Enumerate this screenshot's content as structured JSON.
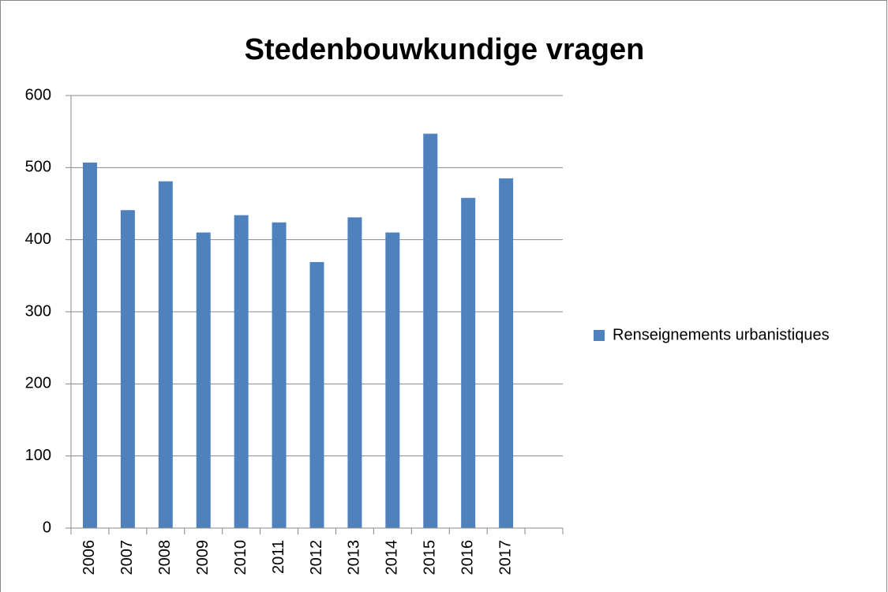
{
  "chart_data": {
    "type": "bar",
    "title": "Stedenbouwkundige vragen",
    "categories": [
      "2006",
      "2007",
      "2008",
      "2009",
      "2010",
      "2011",
      "2012",
      "2013",
      "2014",
      "2015",
      "2016",
      "2017",
      null
    ],
    "series": [
      {
        "name": "Renseignements urbanistiques",
        "color": "#4f81bd",
        "values": [
          507,
          441,
          481,
          410,
          434,
          424,
          369,
          431,
          410,
          547,
          458,
          485,
          null
        ]
      }
    ],
    "ylim": [
      0,
      600
    ],
    "yticks": [
      0,
      100,
      200,
      300,
      400,
      500,
      600
    ],
    "grid": true,
    "legend": "right"
  }
}
